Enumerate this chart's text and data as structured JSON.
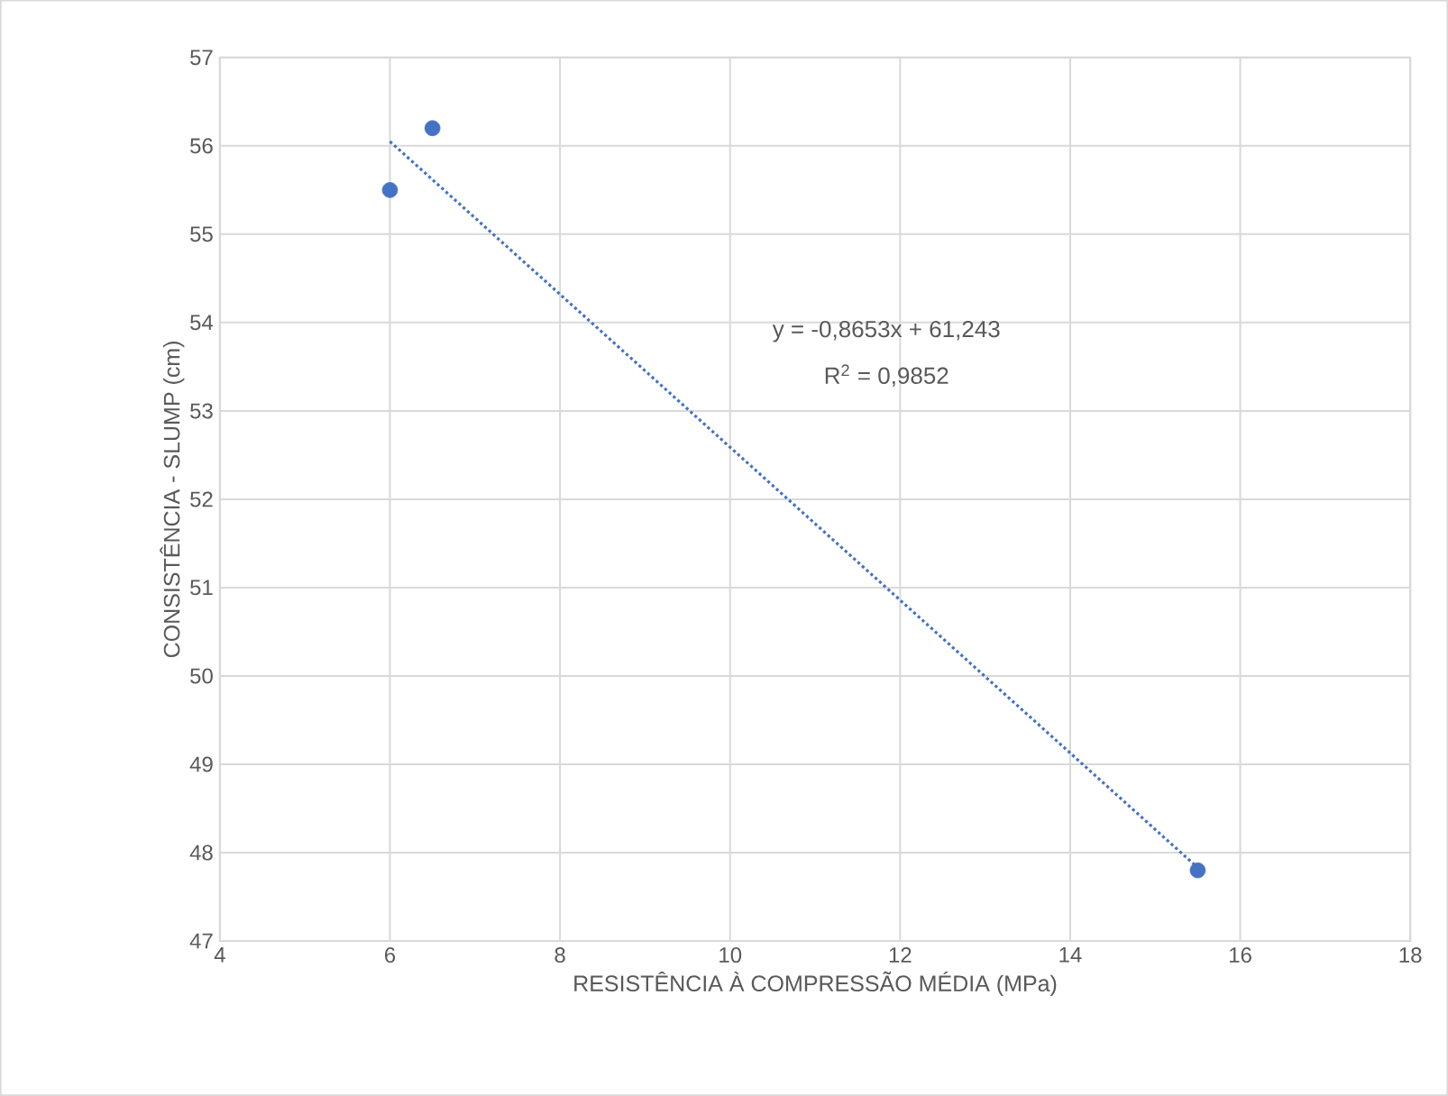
{
  "chart_data": {
    "type": "scatter",
    "xlabel": "RESISTÊNCIA À COMPRESSÃO MÉDIA (MPa)",
    "ylabel": "CONSISTÊNCIA - SLUMP (cm)",
    "xlim": [
      4,
      18
    ],
    "xticks": [
      4,
      6,
      8,
      10,
      12,
      14,
      16,
      18
    ],
    "ylim": [
      47,
      57
    ],
    "yticks": [
      47,
      48,
      49,
      50,
      51,
      52,
      53,
      54,
      55,
      56,
      57
    ],
    "grid": true,
    "series": [
      {
        "color": "#4472c4",
        "marker": "circle",
        "x": [
          6,
          6.5,
          15.5
        ],
        "values": [
          55.5,
          56.2,
          47.8
        ]
      },
      {
        "type": "line",
        "color": "#4472c4",
        "line_style": "dotted",
        "marker": "none",
        "x": [
          6,
          15.5
        ],
        "values": [
          56.05,
          47.83
        ]
      }
    ],
    "annotations": [
      "y = -0,8653x + 61,243",
      "R$^{2}$ = 0,9852"
    ]
  }
}
